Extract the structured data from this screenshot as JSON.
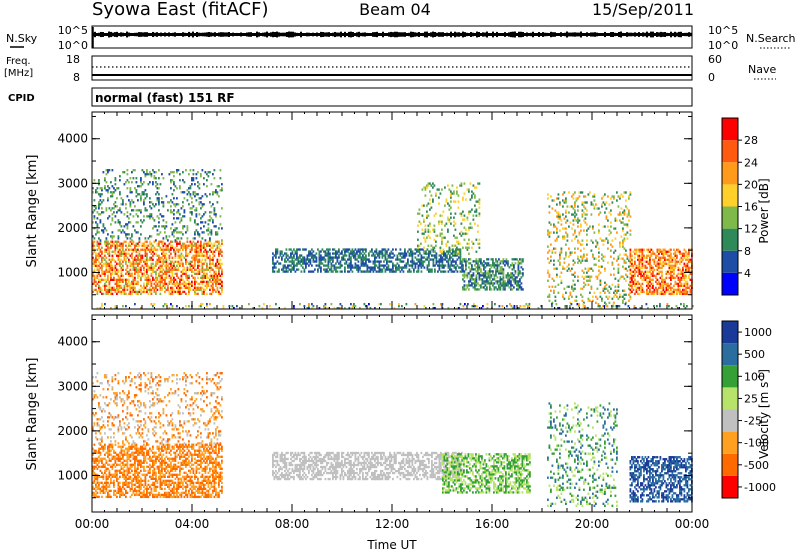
{
  "header": {
    "station": "Syowa East (fitACF)",
    "beam": "Beam 04",
    "date": "15/Sep/2011"
  },
  "strips": {
    "nsky_label": "N.Sky",
    "nsky_ticks": [
      "10^5",
      "10^0"
    ],
    "nsearch_label": "N.Search",
    "nsearch_ticks": [
      "10^5",
      "10^0"
    ],
    "freq_label": "Freq.",
    "freq_unit": "[MHz]",
    "freq_ticks": [
      "18",
      "8"
    ],
    "nave_label": "Nave",
    "nave_ticks": [
      "60",
      "0"
    ],
    "cpid_label": "CPID",
    "cpid_text": "normal (fast) 151 RF"
  },
  "colors": {
    "power": [
      "#0000ff",
      "#1e4da6",
      "#2f8a5a",
      "#7fb94a",
      "#ffd02a",
      "#ff9a1a",
      "#ff5a10",
      "#ff0000"
    ],
    "velocity": [
      "#ff0000",
      "#ff6a00",
      "#ffa020",
      "#c0c0c0",
      "#b7e36b",
      "#35a035",
      "#2a6ea0",
      "#1a3a9a"
    ]
  },
  "chart_data": [
    {
      "type": "heatmap",
      "panel": "power",
      "ylabel": "Slant Range [km]",
      "ylim": [
        180,
        4600
      ],
      "yticks": [
        "4000",
        "3000",
        "2000",
        "1000"
      ],
      "ytick_values": [
        4000,
        3000,
        2000,
        1000
      ],
      "xticks": [
        "00:00",
        "04:00",
        "08:00",
        "12:00",
        "16:00",
        "20:00",
        "00:00"
      ],
      "xtick_hours": [
        0,
        4,
        8,
        12,
        16,
        20,
        24
      ],
      "colorbar_label": "Power [dB]",
      "colorbar_ticks": [
        "28",
        "24",
        "20",
        "16",
        "12",
        "8",
        "4"
      ],
      "colorbar_range": [
        0,
        32
      ],
      "regions": [
        {
          "t0": 0.0,
          "t1": 5.2,
          "r0": 500,
          "r1": 1700,
          "level": 22,
          "spread": 8
        },
        {
          "t0": 0.0,
          "t1": 5.2,
          "r0": 1700,
          "r1": 3300,
          "level": 10,
          "spread": 6,
          "sparse": true
        },
        {
          "t0": 7.2,
          "t1": 14.8,
          "r0": 1000,
          "r1": 1500,
          "level": 8,
          "spread": 4
        },
        {
          "t0": 13.0,
          "t1": 15.5,
          "r0": 1400,
          "r1": 3000,
          "level": 14,
          "spread": 6,
          "sparse": true
        },
        {
          "t0": 14.8,
          "t1": 17.2,
          "r0": 600,
          "r1": 1300,
          "level": 10,
          "spread": 6
        },
        {
          "t0": 18.2,
          "t1": 21.5,
          "r0": 300,
          "r1": 2800,
          "level": 16,
          "spread": 8,
          "sparse": true
        },
        {
          "t0": 21.5,
          "t1": 24.0,
          "r0": 500,
          "r1": 1500,
          "level": 24,
          "spread": 6
        },
        {
          "t0": 0.0,
          "t1": 24.0,
          "r0": 180,
          "r1": 300,
          "level": 12,
          "spread": 10,
          "sparse": true
        }
      ]
    },
    {
      "type": "heatmap",
      "panel": "velocity",
      "ylabel": "Slant Range [km]",
      "ylim": [
        180,
        4600
      ],
      "yticks": [
        "4000",
        "3000",
        "2000",
        "1000"
      ],
      "ytick_values": [
        4000,
        3000,
        2000,
        1000
      ],
      "xticks": [
        "00:00",
        "04:00",
        "08:00",
        "12:00",
        "16:00",
        "20:00",
        "00:00"
      ],
      "xtick_hours": [
        0,
        4,
        8,
        12,
        16,
        20,
        24
      ],
      "xlabel": "Time UT",
      "colorbar_label": "Velocity [m s",
      "colorbar_label_sup": "-1",
      "colorbar_ticks": [
        "1000",
        "500",
        "100",
        "25",
        "-25",
        "-100",
        "-500",
        "-1000"
      ],
      "regions": [
        {
          "t0": 0.0,
          "t1": 5.2,
          "r0": 500,
          "r1": 1700,
          "class": [
            1,
            2
          ],
          "sparse": false
        },
        {
          "t0": 0.0,
          "t1": 5.2,
          "r0": 1700,
          "r1": 3300,
          "class": [
            1,
            3
          ],
          "sparse": true
        },
        {
          "t0": 7.2,
          "t1": 14.8,
          "r0": 900,
          "r1": 1500,
          "class": [
            3,
            3
          ]
        },
        {
          "t0": 14.0,
          "t1": 17.5,
          "r0": 600,
          "r1": 1500,
          "class": [
            4,
            5
          ]
        },
        {
          "t0": 18.2,
          "t1": 21.0,
          "r0": 300,
          "r1": 2600,
          "class": [
            4,
            6
          ],
          "sparse": true
        },
        {
          "t0": 21.5,
          "t1": 24.0,
          "r0": 400,
          "r1": 1400,
          "class": [
            6,
            7
          ]
        }
      ]
    }
  ]
}
